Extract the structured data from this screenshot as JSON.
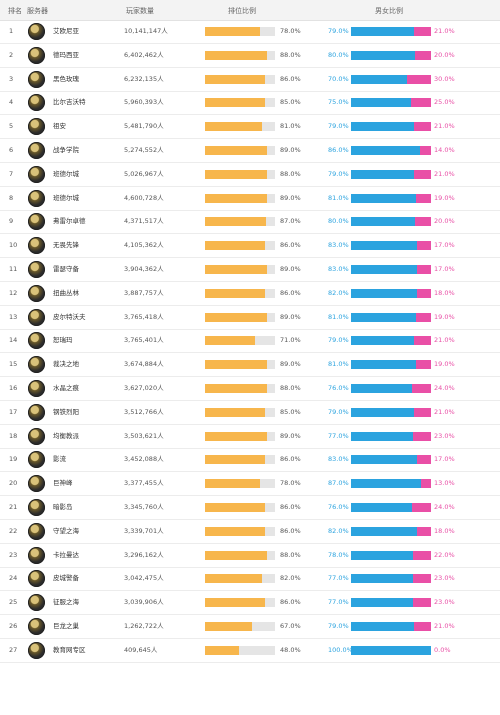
{
  "header": {
    "rank": "排名",
    "server": "服务器",
    "players": "玩家数量",
    "activity": "排位比例",
    "gender": "男女比例"
  },
  "rows": [
    {
      "rank": "1",
      "name": "艾欧尼亚",
      "players": "10,141,147人",
      "ratio": 78,
      "ratio_label": "78.0%",
      "male": 79,
      "male_label": "79.0%",
      "female_label": "21.0%"
    },
    {
      "rank": "2",
      "name": "德玛西亚",
      "players": "6,402,462人",
      "ratio": 88,
      "ratio_label": "88.0%",
      "male": 80,
      "male_label": "80.0%",
      "female_label": "20.0%"
    },
    {
      "rank": "3",
      "name": "黑色玫瑰",
      "players": "6,232,135人",
      "ratio": 86,
      "ratio_label": "86.0%",
      "male": 70,
      "male_label": "70.0%",
      "female_label": "30.0%"
    },
    {
      "rank": "4",
      "name": "比尔吉沃特",
      "players": "5,960,393人",
      "ratio": 85,
      "ratio_label": "85.0%",
      "male": 75,
      "male_label": "75.0%",
      "female_label": "25.0%"
    },
    {
      "rank": "5",
      "name": "祖安",
      "players": "5,481,790人",
      "ratio": 81,
      "ratio_label": "81.0%",
      "male": 79,
      "male_label": "79.0%",
      "female_label": "21.0%"
    },
    {
      "rank": "6",
      "name": "战争学院",
      "players": "5,274,552人",
      "ratio": 89,
      "ratio_label": "89.0%",
      "male": 86,
      "male_label": "86.0%",
      "female_label": "14.0%"
    },
    {
      "rank": "7",
      "name": "班德尔城",
      "players": "5,026,967人",
      "ratio": 88,
      "ratio_label": "88.0%",
      "male": 79,
      "male_label": "79.0%",
      "female_label": "21.0%"
    },
    {
      "rank": "8",
      "name": "班德尔城",
      "players": "4,600,728人",
      "ratio": 89,
      "ratio_label": "89.0%",
      "male": 81,
      "male_label": "81.0%",
      "female_label": "19.0%"
    },
    {
      "rank": "9",
      "name": "弗雷尔卓德",
      "players": "4,371,517人",
      "ratio": 87,
      "ratio_label": "87.0%",
      "male": 80,
      "male_label": "80.0%",
      "female_label": "20.0%"
    },
    {
      "rank": "10",
      "name": "无畏先锋",
      "players": "4,105,362人",
      "ratio": 86,
      "ratio_label": "86.0%",
      "male": 83,
      "male_label": "83.0%",
      "female_label": "17.0%"
    },
    {
      "rank": "11",
      "name": "雷瑟守备",
      "players": "3,904,362人",
      "ratio": 89,
      "ratio_label": "89.0%",
      "male": 83,
      "male_label": "83.0%",
      "female_label": "17.0%"
    },
    {
      "rank": "12",
      "name": "扭曲丛林",
      "players": "3,887,757人",
      "ratio": 86,
      "ratio_label": "86.0%",
      "male": 82,
      "male_label": "82.0%",
      "female_label": "18.0%"
    },
    {
      "rank": "13",
      "name": "皮尔特沃夫",
      "players": "3,765,418人",
      "ratio": 89,
      "ratio_label": "89.0%",
      "male": 81,
      "male_label": "81.0%",
      "female_label": "19.0%"
    },
    {
      "rank": "14",
      "name": "恕瑞玛",
      "players": "3,765,401人",
      "ratio": 71,
      "ratio_label": "71.0%",
      "male": 79,
      "male_label": "79.0%",
      "female_label": "21.0%"
    },
    {
      "rank": "15",
      "name": "裁决之地",
      "players": "3,674,884人",
      "ratio": 89,
      "ratio_label": "89.0%",
      "male": 81,
      "male_label": "81.0%",
      "female_label": "19.0%"
    },
    {
      "rank": "16",
      "name": "水晶之痕",
      "players": "3,627,020人",
      "ratio": 88,
      "ratio_label": "88.0%",
      "male": 76,
      "male_label": "76.0%",
      "female_label": "24.0%"
    },
    {
      "rank": "17",
      "name": "钢铁烈阳",
      "players": "3,512,766人",
      "ratio": 85,
      "ratio_label": "85.0%",
      "male": 79,
      "male_label": "79.0%",
      "female_label": "21.0%"
    },
    {
      "rank": "18",
      "name": "均衡教派",
      "players": "3,503,621人",
      "ratio": 89,
      "ratio_label": "89.0%",
      "male": 77,
      "male_label": "77.0%",
      "female_label": "23.0%"
    },
    {
      "rank": "19",
      "name": "影流",
      "players": "3,452,088人",
      "ratio": 86,
      "ratio_label": "86.0%",
      "male": 83,
      "male_label": "83.0%",
      "female_label": "17.0%"
    },
    {
      "rank": "20",
      "name": "巨神峰",
      "players": "3,377,455人",
      "ratio": 78,
      "ratio_label": "78.0%",
      "male": 87,
      "male_label": "87.0%",
      "female_label": "13.0%"
    },
    {
      "rank": "21",
      "name": "暗影岛",
      "players": "3,345,760人",
      "ratio": 86,
      "ratio_label": "86.0%",
      "male": 76,
      "male_label": "76.0%",
      "female_label": "24.0%"
    },
    {
      "rank": "22",
      "name": "守望之海",
      "players": "3,339,701人",
      "ratio": 86,
      "ratio_label": "86.0%",
      "male": 82,
      "male_label": "82.0%",
      "female_label": "18.0%"
    },
    {
      "rank": "23",
      "name": "卡拉曼达",
      "players": "3,296,162人",
      "ratio": 88,
      "ratio_label": "88.0%",
      "male": 78,
      "male_label": "78.0%",
      "female_label": "22.0%"
    },
    {
      "rank": "24",
      "name": "皮城警备",
      "players": "3,042,475人",
      "ratio": 82,
      "ratio_label": "82.0%",
      "male": 77,
      "male_label": "77.0%",
      "female_label": "23.0%"
    },
    {
      "rank": "25",
      "name": "征服之海",
      "players": "3,039,906人",
      "ratio": 86,
      "ratio_label": "86.0%",
      "male": 77,
      "male_label": "77.0%",
      "female_label": "23.0%"
    },
    {
      "rank": "26",
      "name": "巨龙之巢",
      "players": "1,262,722人",
      "ratio": 67,
      "ratio_label": "67.0%",
      "male": 79,
      "male_label": "79.0%",
      "female_label": "21.0%"
    },
    {
      "rank": "27",
      "name": "教育网专区",
      "players": "409,645人",
      "ratio": 48,
      "ratio_label": "48.0%",
      "male": 100,
      "male_label": "100.0%",
      "female_label": "0.0%"
    }
  ]
}
